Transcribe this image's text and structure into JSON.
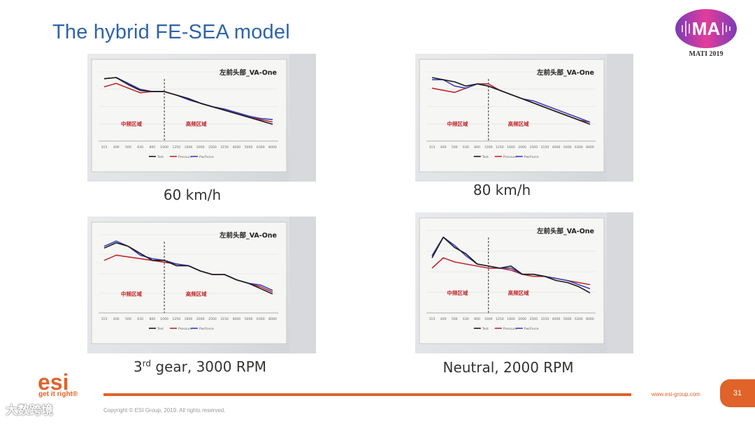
{
  "slide": {
    "title": "The hybrid FE-SEA model",
    "mati_logo_text": "MAti",
    "mati_year": "MATI 2019",
    "esi_logo_text": "esi",
    "esi_tagline": "get it right®",
    "copyright": "Copyright © ESI Group, 2019. All rights reserved.",
    "website": "www.esi-group.com",
    "page_number": "31",
    "watermark": "大数跨境"
  },
  "colors": {
    "title": "#2f64a8",
    "accent": "#e0632a",
    "test_series": "#1a1a1a",
    "pressure_series": "#c0282d",
    "pwrforce_series": "#3b3fb8"
  },
  "chart_data": [
    {
      "type": "line",
      "caption": "60 km/h",
      "title": "左前头部_VA-One",
      "region_low": "中频区域",
      "region_high": "高频区域",
      "categories": [
        "315",
        "400",
        "500",
        "630",
        "800",
        "1000",
        "1250",
        "1600",
        "2000",
        "2500",
        "3150",
        "4000",
        "5000",
        "6300",
        "8000"
      ],
      "series": [
        {
          "name": "Test",
          "values": [
            74,
            75,
            69,
            64,
            63,
            63,
            60,
            57,
            53,
            50,
            47,
            44,
            41,
            38,
            35
          ]
        },
        {
          "name": "Pressure",
          "values": [
            67,
            70,
            66,
            62,
            63,
            63,
            60,
            57,
            53,
            50,
            48,
            45,
            42,
            39,
            37
          ]
        },
        {
          "name": "PwrForce",
          "values": [
            74,
            75,
            70,
            65,
            63,
            63,
            60,
            56,
            53,
            50,
            48,
            45,
            42,
            40,
            39
          ]
        }
      ]
    },
    {
      "type": "line",
      "caption": "80 km/h",
      "title": "左前头部_VA-One",
      "region_low": "中频区域",
      "region_high": "高频区域",
      "categories": [
        "315",
        "400",
        "500",
        "630",
        "800",
        "1000",
        "1250",
        "1600",
        "2000",
        "2500",
        "3150",
        "4000",
        "5000",
        "6300",
        "8000"
      ],
      "series": [
        {
          "name": "Test",
          "values": [
            73,
            72,
            71,
            69,
            70,
            69,
            67,
            65,
            63,
            61,
            59,
            57,
            55,
            53,
            51
          ]
        },
        {
          "name": "Pressure",
          "values": [
            68,
            67,
            66,
            68,
            70,
            70,
            67,
            65,
            63,
            61,
            59,
            57,
            55,
            53,
            52
          ]
        },
        {
          "name": "PwrForce",
          "values": [
            72,
            72,
            69,
            68,
            70,
            69,
            67,
            65,
            63,
            62,
            60,
            58,
            56,
            54,
            52
          ]
        }
      ]
    },
    {
      "type": "line",
      "caption": "3rd gear, 3000 RPM",
      "caption_main": "3",
      "caption_sup": "rd",
      "caption_rest": " gear, 3000 RPM",
      "title": "左前头部_VA-One",
      "region_low": "中频区域",
      "region_high": "高频区域",
      "categories": [
        "315",
        "400",
        "500",
        "630",
        "800",
        "1000",
        "1250",
        "1600",
        "2000",
        "2500",
        "3150",
        "4000",
        "5000",
        "6300",
        "8000"
      ],
      "series": [
        {
          "name": "Test",
          "values": [
            86,
            89,
            87,
            83,
            79,
            79,
            76,
            76,
            73,
            71,
            71,
            68,
            66,
            63,
            60
          ]
        },
        {
          "name": "Pressure",
          "values": [
            79,
            82,
            81,
            80,
            79,
            78,
            77,
            76,
            73,
            71,
            71,
            68,
            66,
            64,
            61
          ]
        },
        {
          "name": "PwrForce",
          "values": [
            87,
            90,
            87,
            82,
            80,
            79,
            77,
            76,
            73,
            71,
            71,
            68,
            66,
            65,
            62
          ]
        }
      ]
    },
    {
      "type": "line",
      "caption": "Neutral, 2000 RPM",
      "title": "左前头部_VA-One",
      "region_low": "中频区域",
      "region_high": "高频区域",
      "categories": [
        "315",
        "400",
        "500",
        "630",
        "800",
        "1000",
        "1250",
        "1600",
        "2000",
        "2500",
        "3150",
        "4000",
        "5000",
        "6300",
        "8000"
      ],
      "series": [
        {
          "name": "Test",
          "values": [
            63,
            73,
            68,
            65,
            60,
            59,
            58,
            59,
            55,
            55,
            54,
            52,
            51,
            49,
            46
          ]
        },
        {
          "name": "Pressure",
          "values": [
            58,
            63,
            61,
            60,
            59,
            58,
            58,
            57,
            55,
            54,
            54,
            53,
            52,
            51,
            50
          ]
        },
        {
          "name": "PwrForce",
          "values": [
            64,
            73,
            69,
            64,
            60,
            59,
            58,
            58,
            55,
            55,
            54,
            53,
            52,
            50,
            48
          ]
        }
      ]
    }
  ]
}
